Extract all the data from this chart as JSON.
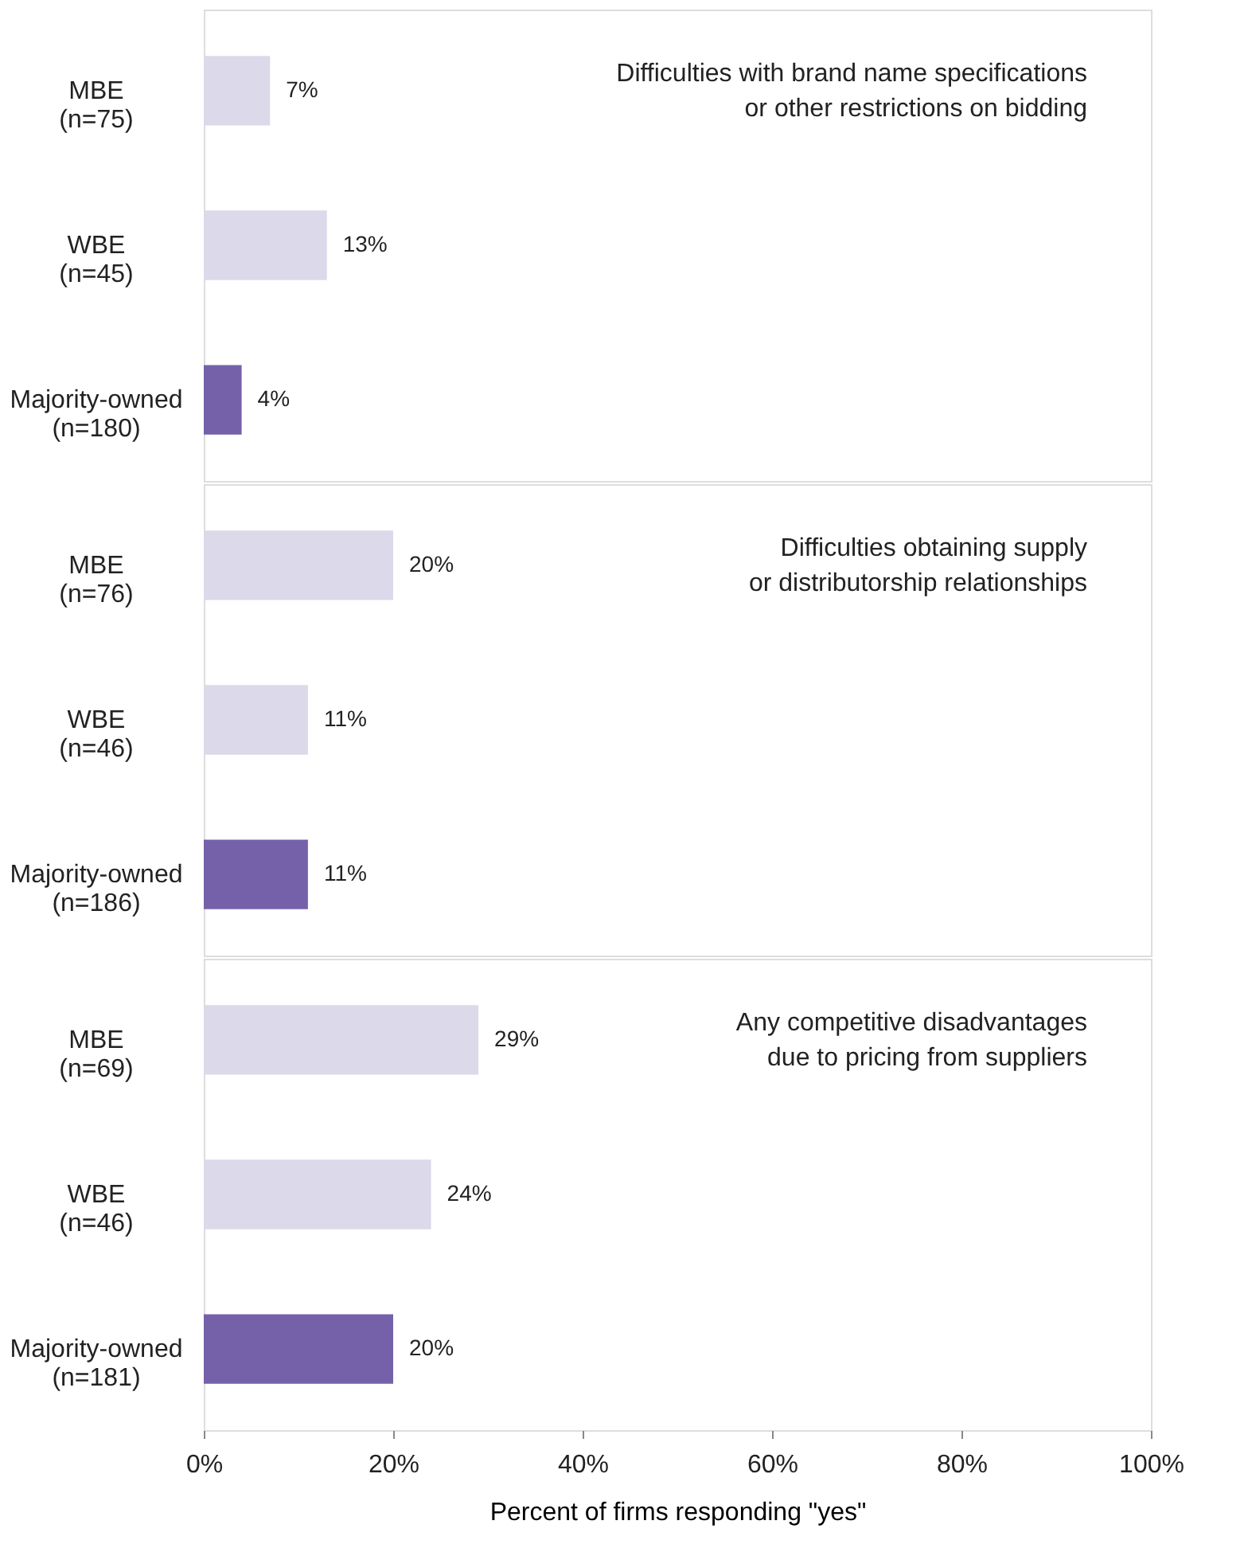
{
  "chart_data": [
    {
      "type": "bar",
      "orientation": "horizontal",
      "categories": [
        "MBE\n(n=75)",
        "WBE\n(n=45)",
        "Majority-owned\n(n=180)"
      ],
      "values": [
        7,
        13,
        4
      ],
      "colors": [
        "#dcd9ea",
        "#dcd9ea",
        "#7461a9"
      ],
      "value_labels": [
        "7%",
        "13%",
        "4%"
      ],
      "xlim": [
        0,
        100
      ],
      "tick_labels": "y",
      "annotations": [
        "Difficulties with brand name specifications\nor other restrictions on bidding"
      ],
      "grid": false
    },
    {
      "type": "bar",
      "orientation": "horizontal",
      "categories": [
        "MBE\n(n=76)",
        "WBE\n(n=46)",
        "Majority-owned\n(n=186)"
      ],
      "values": [
        20,
        11,
        11
      ],
      "colors": [
        "#dcd9ea",
        "#dcd9ea",
        "#7461a9"
      ],
      "value_labels": [
        "20%",
        "11%",
        "11%"
      ],
      "xlim": [
        0,
        100
      ],
      "tick_labels": "y",
      "annotations": [
        "Difficulties obtaining supply\nor distributorship relationships"
      ],
      "grid": false
    },
    {
      "type": "bar",
      "orientation": "horizontal",
      "categories": [
        "MBE\n(n=69)",
        "WBE\n(n=46)",
        "Majority-owned\n(n=181)"
      ],
      "values": [
        29,
        24,
        20
      ],
      "colors": [
        "#dcd9ea",
        "#dcd9ea",
        "#7461a9"
      ],
      "value_labels": [
        "29%",
        "24%",
        "20%"
      ],
      "xlim": [
        0,
        100
      ],
      "xticks": [
        {
          "value": 0,
          "label": "0%"
        },
        {
          "value": 20,
          "label": "20%"
        },
        {
          "value": 40,
          "label": "40%"
        },
        {
          "value": 60,
          "label": "60%"
        },
        {
          "value": 80,
          "label": "80%"
        },
        {
          "value": 100,
          "label": "100%"
        }
      ],
      "xlabel": "Percent of firms responding \"yes\"",
      "annotations": [
        "Any competitive disadvantages\ndue to pricing from suppliers"
      ],
      "grid": false
    }
  ]
}
